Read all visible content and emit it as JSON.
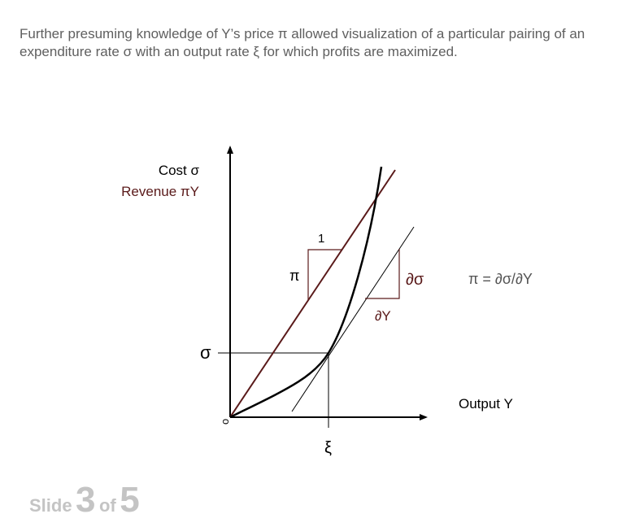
{
  "caption": {
    "line1": "Further presuming knowledge of Y’s price π allowed visualization of a particular pairing of an",
    "line2": "expenditure rate σ with an output rate ξ for which profits are maximized."
  },
  "diagram": {
    "y_axis_label_line1": "Cost σ",
    "y_axis_label_line2": "Revenue πY",
    "x_axis_label": "Output Y",
    "origin_label": "o",
    "sigma_label": "σ",
    "xi_label": "ξ",
    "pi_label": "π",
    "one_label": "1",
    "dsigma_label": "∂σ",
    "dY_label": "∂Y",
    "formula": "π = ∂σ/∂Y",
    "colors": {
      "revenue_line": "#5a1a1a",
      "tangent_slope_triangle": "#5a1a1a",
      "curve": "#000000",
      "axes": "#000000"
    }
  },
  "footer": {
    "slide_word": "Slide",
    "current": "3",
    "of_word": "of",
    "total": "5"
  }
}
